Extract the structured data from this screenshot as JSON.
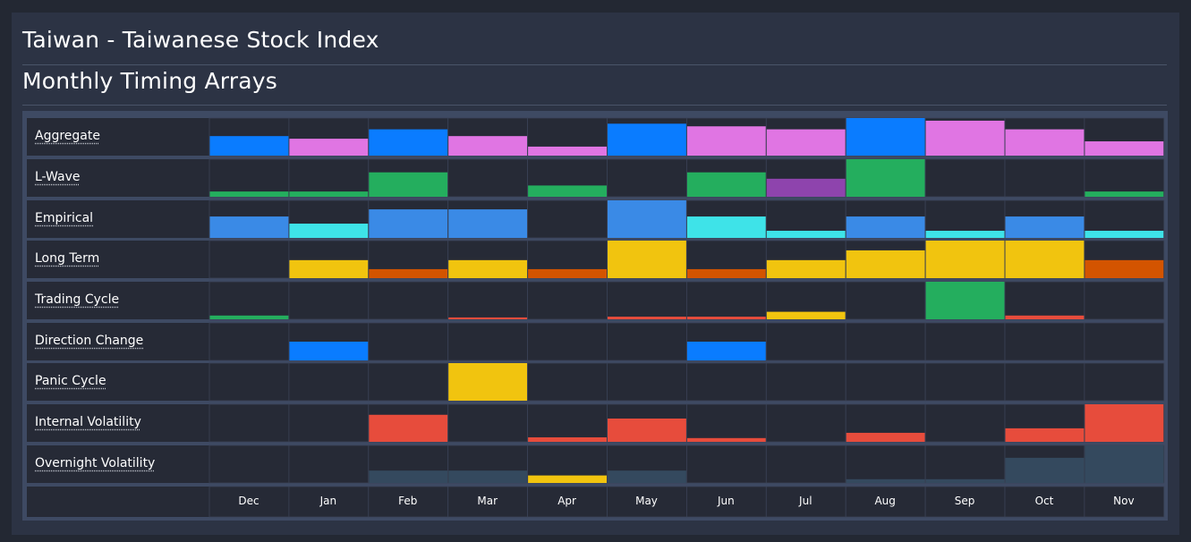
{
  "title": "Taiwan - Taiwanese Stock Index",
  "subtitle": "Monthly Timing Arrays",
  "colors": {
    "background": "#232833",
    "panel": "#2c3344",
    "row_frame": "#3e4a63",
    "cell": "#262a36",
    "cell_border": "#3a4256",
    "blue": "#0a7cff",
    "pink": "#e075e3",
    "green": "#24ae5e",
    "purple": "#8e44ad",
    "steel_blue": "#3a8ae6",
    "cyan": "#3ee3e8",
    "yellow": "#f1c40f",
    "orange": "#d35400",
    "red": "#e74c3c",
    "slate": "#34495e"
  },
  "chart_data": {
    "type": "heatmap",
    "title": "Monthly Timing Arrays",
    "categories": [
      "Dec",
      "Jan",
      "Feb",
      "Mar",
      "Apr",
      "May",
      "Jun",
      "Jul",
      "Aug",
      "Sep",
      "Oct",
      "Nov"
    ],
    "rows": [
      {
        "label": "Aggregate",
        "values": [
          0.52,
          0.45,
          0.7,
          0.52,
          0.24,
          0.85,
          0.78,
          0.7,
          1.0,
          0.93,
          0.7,
          0.38
        ],
        "colors": [
          "blue",
          "pink",
          "blue",
          "pink",
          "pink",
          "blue",
          "pink",
          "pink",
          "blue",
          "pink",
          "pink",
          "pink"
        ]
      },
      {
        "label": "L-Wave",
        "values": [
          0.14,
          0.14,
          0.65,
          0,
          0.3,
          0,
          0.65,
          0.48,
          1.0,
          0,
          0,
          0.14
        ],
        "colors": [
          "green",
          "green",
          "green",
          "green",
          "green",
          "green",
          "green",
          "purple",
          "green",
          "green",
          "green",
          "green"
        ]
      },
      {
        "label": "Empirical",
        "values": [
          0.57,
          0.38,
          0.76,
          0.76,
          0,
          1.0,
          0.57,
          0.19,
          0.57,
          0.19,
          0.57,
          0.19
        ],
        "colors": [
          "steel_blue",
          "cyan",
          "steel_blue",
          "steel_blue",
          "steel_blue",
          "steel_blue",
          "cyan",
          "cyan",
          "steel_blue",
          "cyan",
          "steel_blue",
          "cyan"
        ]
      },
      {
        "label": "Long Term",
        "values": [
          0,
          0.48,
          0.24,
          0.48,
          0.24,
          1.0,
          0.24,
          0.48,
          0.74,
          1.0,
          1.0,
          0.48
        ],
        "colors": [
          "yellow",
          "yellow",
          "orange",
          "yellow",
          "orange",
          "yellow",
          "orange",
          "yellow",
          "yellow",
          "yellow",
          "yellow",
          "orange"
        ]
      },
      {
        "label": "Trading Cycle",
        "values": [
          0.1,
          0,
          0,
          0.05,
          0,
          0.07,
          0.07,
          0.2,
          0,
          1.0,
          0.1,
          0
        ],
        "colors": [
          "green",
          "red",
          "red",
          "red",
          "red",
          "red",
          "red",
          "yellow",
          "red",
          "green",
          "red",
          "red"
        ]
      },
      {
        "label": "Direction Change",
        "values": [
          0,
          0.5,
          0,
          0,
          0,
          0,
          0.5,
          0,
          0,
          0,
          0,
          0
        ],
        "colors": [
          "blue",
          "blue",
          "blue",
          "blue",
          "blue",
          "blue",
          "blue",
          "blue",
          "blue",
          "blue",
          "blue",
          "blue"
        ]
      },
      {
        "label": "Panic Cycle",
        "values": [
          0,
          0,
          0,
          1.0,
          0,
          0,
          0,
          0,
          0,
          0,
          0,
          0
        ],
        "colors": [
          "yellow",
          "yellow",
          "yellow",
          "yellow",
          "yellow",
          "yellow",
          "yellow",
          "yellow",
          "yellow",
          "yellow",
          "yellow",
          "yellow"
        ]
      },
      {
        "label": "Internal Volatility",
        "values": [
          0,
          0,
          0.72,
          0,
          0.12,
          0.62,
          0.1,
          0,
          0.24,
          0,
          0.36,
          1.0
        ],
        "colors": [
          "red",
          "red",
          "red",
          "red",
          "red",
          "red",
          "red",
          "red",
          "red",
          "red",
          "red",
          "red"
        ]
      },
      {
        "label": "Overnight Volatility",
        "values": [
          0,
          0,
          0.33,
          0.33,
          0.2,
          0.33,
          0,
          0,
          0.1,
          0.1,
          0.67,
          1.0
        ],
        "colors": [
          "slate",
          "slate",
          "slate",
          "slate",
          "yellow",
          "slate",
          "slate",
          "slate",
          "slate",
          "slate",
          "slate",
          "slate"
        ]
      }
    ]
  }
}
